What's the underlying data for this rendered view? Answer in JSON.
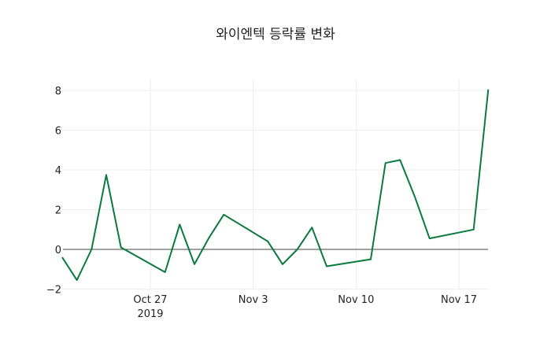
{
  "chart_data": {
    "type": "line",
    "title": "와이엔텍 등락률 변화",
    "xlabel": "",
    "ylabel": "",
    "ylim": [
      -2.0,
      8.6
    ],
    "grid": true,
    "legend": null,
    "x_ticks": [
      {
        "label": "Oct 27",
        "sublabel": "2019",
        "date": "2019-10-27"
      },
      {
        "label": "Nov 3",
        "sublabel": "",
        "date": "2019-11-03"
      },
      {
        "label": "Nov 10",
        "sublabel": "",
        "date": "2019-11-10"
      },
      {
        "label": "Nov 17",
        "sublabel": "",
        "date": "2019-11-17"
      }
    ],
    "y_ticks": [
      -2,
      0,
      2,
      4,
      6,
      8
    ],
    "y_tick_labels": [
      "−2",
      "0",
      "2",
      "4",
      "6",
      "8"
    ],
    "x": [
      "2019-10-21",
      "2019-10-22",
      "2019-10-23",
      "2019-10-24",
      "2019-10-25",
      "2019-10-28",
      "2019-10-29",
      "2019-10-30",
      "2019-10-31",
      "2019-11-01",
      "2019-11-04",
      "2019-11-05",
      "2019-11-06",
      "2019-11-07",
      "2019-11-08",
      "2019-11-11",
      "2019-11-12",
      "2019-11-13",
      "2019-11-14",
      "2019-11-15",
      "2019-11-18",
      "2019-11-19"
    ],
    "series": [
      {
        "name": "등락률",
        "color": "#0a7a3e",
        "values": [
          -0.4,
          -1.55,
          0.0,
          3.75,
          0.1,
          -1.15,
          1.25,
          -0.75,
          0.6,
          1.75,
          0.4,
          -0.75,
          0.0,
          1.1,
          -0.85,
          -0.5,
          4.35,
          4.5,
          2.65,
          0.55,
          1.0,
          8.05
        ]
      }
    ]
  }
}
